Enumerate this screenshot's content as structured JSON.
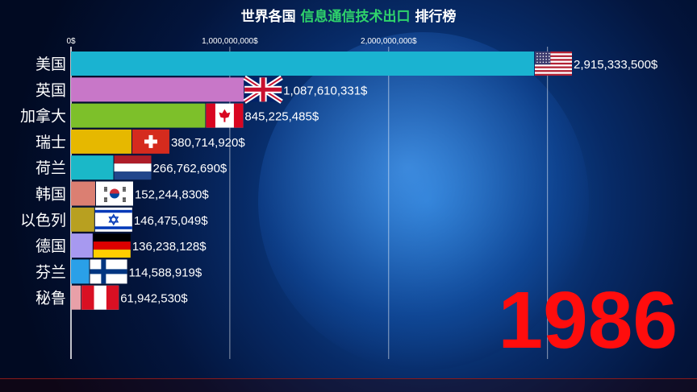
{
  "title": {
    "part1": "世界各国",
    "highlight": "信息通信技术出口",
    "part2": "排行榜"
  },
  "year": "1986",
  "chart_data": {
    "type": "bar",
    "orientation": "horizontal",
    "title": "世界各国 信息通信技术出口 排行榜",
    "x_ticks": [
      {
        "value": 0,
        "label": "0$"
      },
      {
        "value": 1000000000,
        "label": "1,000,000,000$"
      },
      {
        "value": 2000000000,
        "label": "2,000,000,000$"
      }
    ],
    "categories": [
      "美国",
      "英国",
      "加拿大",
      "瑞士",
      "荷兰",
      "韩国",
      "以色列",
      "德国",
      "芬兰",
      "秘鲁"
    ],
    "values": [
      2915333500,
      1087610331,
      845225485,
      380714920,
      266762690,
      152244830,
      146475049,
      136238128,
      114588919,
      61942530
    ],
    "value_labels": [
      "2,915,333,500$",
      "1,087,610,331$",
      "845,225,485$",
      "380,714,920$",
      "266,762,690$",
      "152,244,830$",
      "146,475,049$",
      "136,238,128$",
      "114,588,919$",
      "61,942,530$"
    ],
    "colors": [
      "#1ab3d1",
      "#c877c8",
      "#7dc02a",
      "#e6b800",
      "#1ab8c8",
      "#db7f72",
      "#b8a020",
      "#a799f0",
      "#2aa0e8",
      "#e8a0a8"
    ],
    "flags": [
      "us-flag-icon",
      "uk-flag-icon",
      "canada-flag-icon",
      "switzerland-flag-icon",
      "netherlands-flag-icon",
      "korea-flag-icon",
      "israel-flag-icon",
      "germany-flag-icon",
      "finland-flag-icon",
      "peru-flag-icon"
    ],
    "xlim": [
      0,
      2915333500
    ],
    "grid": true
  }
}
